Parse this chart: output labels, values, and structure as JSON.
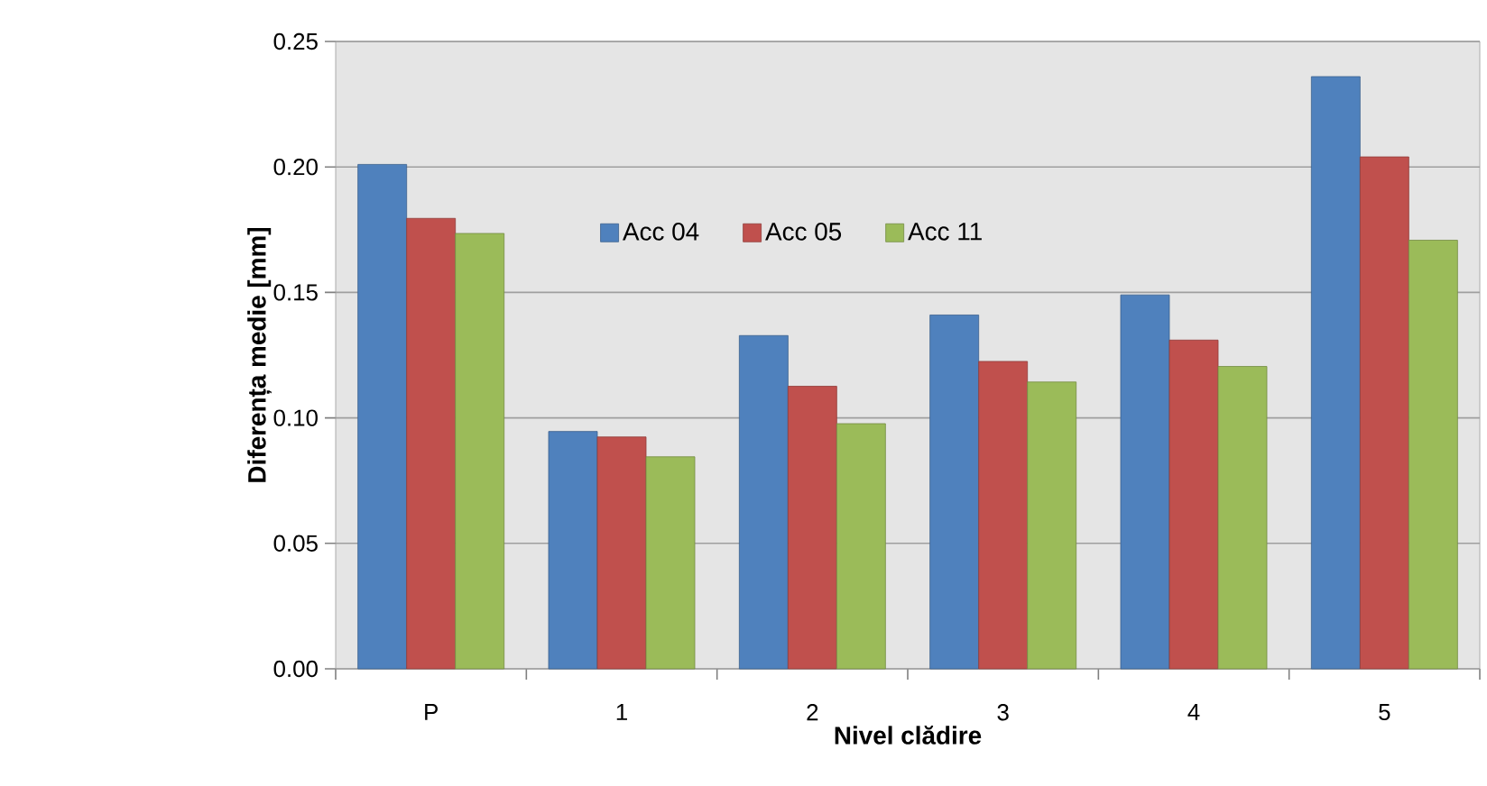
{
  "chart_data": {
    "type": "bar",
    "xlabel": "Nivel clădire",
    "ylabel": "Diferența medie [mm]",
    "categories": [
      "P",
      "1",
      "2",
      "3",
      "4",
      "5"
    ],
    "series": [
      {
        "name": "Acc 04",
        "color": "#4f81bd",
        "values": [
          0.201,
          0.0946,
          0.1328,
          0.141,
          0.149,
          0.236
        ]
      },
      {
        "name": "Acc 05",
        "color": "#c0504d",
        "values": [
          0.1795,
          0.0924,
          0.1126,
          0.1225,
          0.131,
          0.204
        ]
      },
      {
        "name": "Acc 11",
        "color": "#9bbb59",
        "values": [
          0.1735,
          0.0845,
          0.0977,
          0.1143,
          0.1205,
          0.1708
        ]
      }
    ],
    "ylim": [
      0,
      0.25
    ],
    "yticks": [
      {
        "value": 0,
        "label": "0.00"
      },
      {
        "value": 0.05,
        "label": "0.05"
      },
      {
        "value": 0.1,
        "label": "0.10"
      },
      {
        "value": 0.15,
        "label": "0.15"
      },
      {
        "value": 0.2,
        "label": "0.20"
      },
      {
        "value": 0.25,
        "label": "0.25"
      }
    ],
    "grid": "y",
    "legend": "top"
  }
}
